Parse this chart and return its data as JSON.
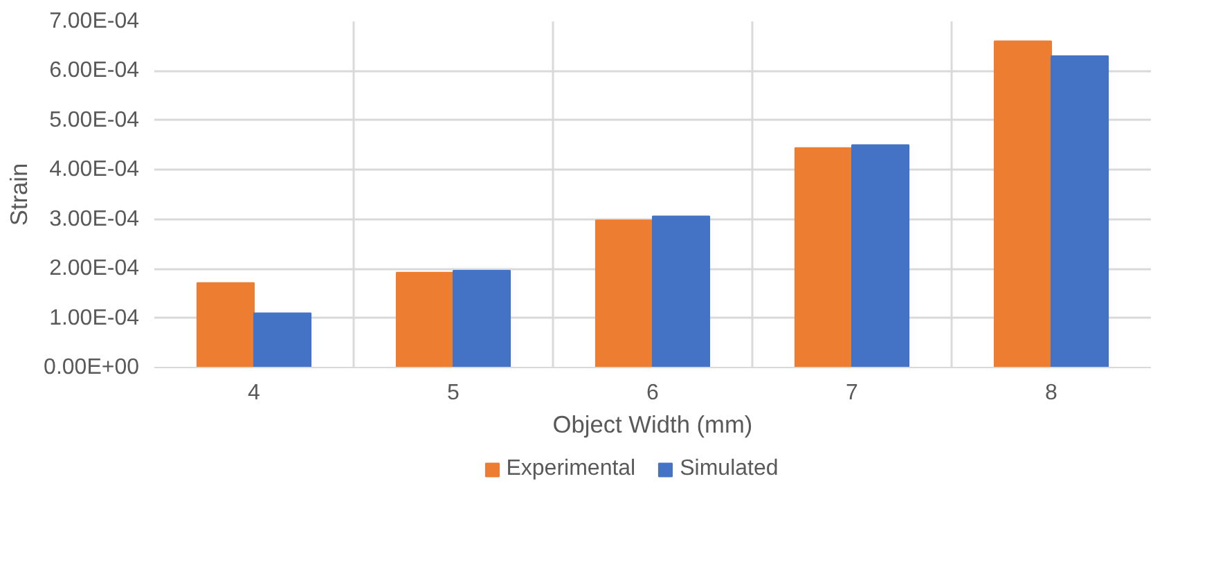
{
  "chart_data": {
    "type": "bar",
    "xlabel": "Object Width (mm)",
    "ylabel": "Strain",
    "categories": [
      "4",
      "5",
      "6",
      "7",
      "8"
    ],
    "series": [
      {
        "name": "Experimental",
        "color": "#ed7d31",
        "values": [
          0.000171,
          0.000192,
          0.000298,
          0.000444,
          0.00066
        ]
      },
      {
        "name": "Simulated",
        "color": "#4472c4",
        "values": [
          0.00011,
          0.000196,
          0.000306,
          0.00045,
          0.00063
        ]
      }
    ],
    "ylim": [
      0,
      0.0007
    ],
    "yticks": [
      {
        "value": 0,
        "label": "0.00E+00"
      },
      {
        "value": 0.0001,
        "label": "1.00E-04"
      },
      {
        "value": 0.0002,
        "label": "2.00E-04"
      },
      {
        "value": 0.0003,
        "label": "3.00E-04"
      },
      {
        "value": 0.0004,
        "label": "4.00E-04"
      },
      {
        "value": 0.0005,
        "label": "5.00E-04"
      },
      {
        "value": 0.0006,
        "label": "6.00E-04"
      },
      {
        "value": 0.0007,
        "label": "7.00E-04"
      }
    ],
    "grid": true,
    "legend": "bottom"
  }
}
